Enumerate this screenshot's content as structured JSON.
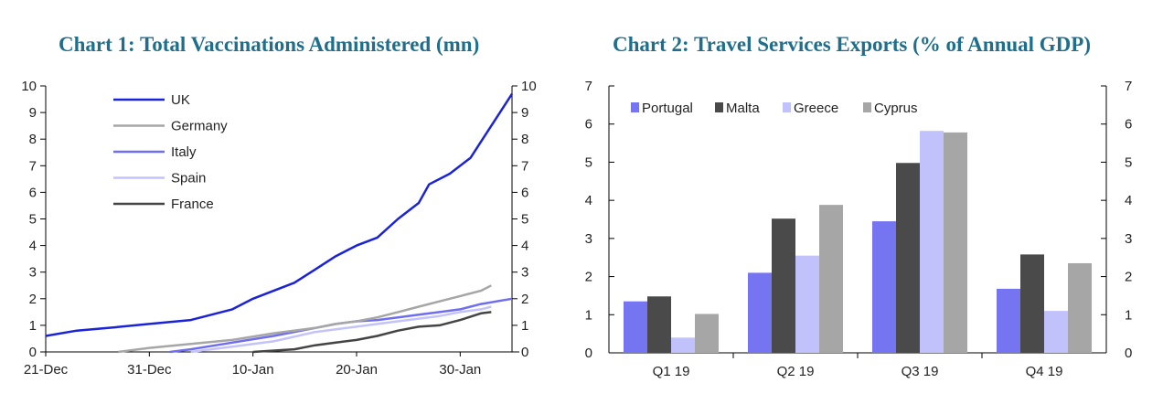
{
  "chart_data": [
    {
      "type": "line",
      "title": "Chart 1: Total Vaccinations Administered (mn)",
      "xlabel": "",
      "ylabel": "",
      "x_axis": {
        "type": "date",
        "start": "2020-12-21",
        "end": "2021-02-02",
        "tick_labels": [
          "21-Dec",
          "31-Dec",
          "10-Jan",
          "20-Jan",
          "30-Jan"
        ]
      },
      "ylim": [
        0,
        10
      ],
      "yticks": [
        0,
        1,
        2,
        3,
        4,
        5,
        6,
        7,
        8,
        9,
        10
      ],
      "legend_position": "top-left",
      "series": [
        {
          "name": "UK",
          "color": "#1a23d6",
          "x": [
            0,
            3,
            6,
            10,
            14,
            18,
            20,
            22,
            24,
            26,
            28,
            30,
            32,
            34,
            36,
            37,
            39,
            41,
            42,
            43,
            45
          ],
          "y": [
            0.6,
            0.8,
            0.9,
            1.05,
            1.2,
            1.6,
            2.0,
            2.3,
            2.6,
            3.1,
            3.6,
            4.0,
            4.3,
            5.0,
            5.6,
            6.3,
            6.7,
            7.3,
            7.9,
            8.5,
            9.7
          ]
        },
        {
          "name": "Germany",
          "color": "#a6a6a6",
          "x": [
            7,
            10,
            14,
            18,
            22,
            26,
            28,
            30,
            32,
            34,
            36,
            38,
            40,
            42,
            43
          ],
          "y": [
            0,
            0.15,
            0.3,
            0.45,
            0.7,
            0.9,
            1.05,
            1.15,
            1.3,
            1.5,
            1.7,
            1.9,
            2.1,
            2.3,
            2.5
          ]
        },
        {
          "name": "Italy",
          "color": "#6f6ef0",
          "x": [
            12,
            14,
            18,
            22,
            26,
            28,
            30,
            32,
            34,
            36,
            38,
            40,
            42,
            45
          ],
          "y": [
            0,
            0.1,
            0.35,
            0.6,
            0.9,
            1.05,
            1.15,
            1.2,
            1.3,
            1.4,
            1.5,
            1.6,
            1.8,
            2.0
          ]
        },
        {
          "name": "Spain",
          "color": "#c3c3fa",
          "x": [
            14,
            18,
            22,
            26,
            28,
            30,
            32,
            34,
            36,
            38,
            40,
            42,
            43
          ],
          "y": [
            0,
            0.2,
            0.4,
            0.75,
            0.85,
            0.95,
            1.05,
            1.15,
            1.25,
            1.35,
            1.5,
            1.6,
            1.7
          ]
        },
        {
          "name": "France",
          "color": "#444444",
          "x": [
            20,
            24,
            26,
            28,
            30,
            32,
            34,
            36,
            38,
            40,
            42,
            43
          ],
          "y": [
            0,
            0.1,
            0.25,
            0.35,
            0.45,
            0.6,
            0.8,
            0.95,
            1.0,
            1.2,
            1.45,
            1.5
          ]
        }
      ]
    },
    {
      "type": "bar",
      "title": "Chart 2: Travel Services Exports (% of Annual GDP)",
      "xlabel": "",
      "ylabel": "",
      "categories": [
        "Q1 19",
        "Q2 19",
        "Q3 19",
        "Q4 19"
      ],
      "ylim": [
        0,
        7
      ],
      "yticks": [
        0,
        1,
        2,
        3,
        4,
        5,
        6,
        7
      ],
      "legend_position": "top-left",
      "series": [
        {
          "name": "Portugal",
          "color": "#7575f2",
          "values": [
            1.35,
            2.1,
            3.45,
            1.68
          ]
        },
        {
          "name": "Malta",
          "color": "#4a4a4a",
          "values": [
            1.48,
            3.52,
            4.98,
            2.58
          ]
        },
        {
          "name": "Greece",
          "color": "#c1c1fb",
          "values": [
            0.4,
            2.55,
            5.82,
            1.1
          ]
        },
        {
          "name": "Cyprus",
          "color": "#a6a6a6",
          "values": [
            1.02,
            3.88,
            5.78,
            2.35
          ]
        }
      ]
    }
  ]
}
